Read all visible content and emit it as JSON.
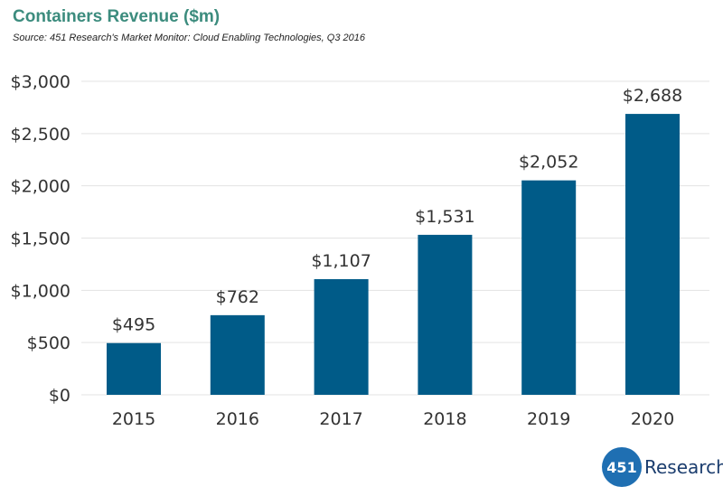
{
  "title": "Containers Revenue ($m)",
  "subtitle": "Source: 451 Research's Market Monitor: Cloud Enabling Technologies, Q3 2016",
  "colors": {
    "bar": "#005b88",
    "title": "#3c8c7e",
    "grid": "#e3e3e3"
  },
  "chart_data": {
    "type": "bar",
    "title": "Containers Revenue ($m)",
    "categories": [
      "2015",
      "2016",
      "2017",
      "2018",
      "2019",
      "2020"
    ],
    "values": [
      495,
      762,
      1107,
      1531,
      2052,
      2688
    ],
    "data_labels": [
      "$495",
      "$762",
      "$1,107",
      "$1,531",
      "$2,052",
      "$2,688"
    ],
    "yticks": [
      0,
      500,
      1000,
      1500,
      2000,
      2500,
      3000
    ],
    "ytick_labels": [
      "$0",
      "$500",
      "$1,000",
      "$1,500",
      "$2,000",
      "$2,500",
      "$3,000"
    ],
    "ylim": [
      0,
      3000
    ],
    "grid": true,
    "legend": "none"
  },
  "logo": {
    "mark": "451",
    "text": "Research",
    "registered": "®"
  }
}
